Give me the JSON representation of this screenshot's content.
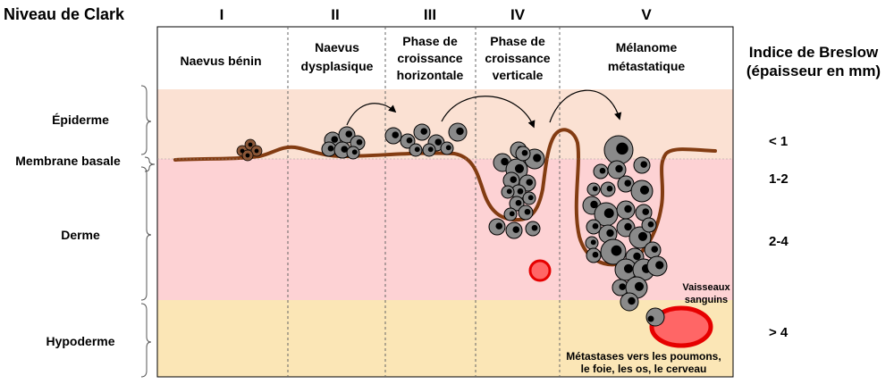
{
  "clark": {
    "title": "Niveau de Clark",
    "levels": [
      "I",
      "II",
      "III",
      "IV",
      "V"
    ]
  },
  "stages": {
    "s1": [
      "Naevus bénin"
    ],
    "s2": [
      "Naevus",
      "dysplasique"
    ],
    "s3": [
      "Phase de",
      "croissance",
      "horizontale"
    ],
    "s4": [
      "Phase de",
      "croissance",
      "verticale"
    ],
    "s5": [
      "Mélanome",
      "métastatique"
    ]
  },
  "layers": {
    "epiderme": "Épiderme",
    "membrane": "Membrane basale",
    "derme": "Derme",
    "hypoderme": "Hypoderme"
  },
  "breslow": {
    "title": [
      "Indice de Breslow",
      "(épaisseur en mm)"
    ],
    "values": [
      "< 1",
      "1-2",
      "2-4",
      "> 4"
    ]
  },
  "vessels": [
    "Vaisseaux",
    "sanguins"
  ],
  "metastases": [
    "Métastases vers les poumons,",
    "le foie, les os, le cerveau"
  ],
  "colors": {
    "epidermis": "#fbe1d3",
    "dermis": "#fdd2d4",
    "hypodermis": "#fbe6b6",
    "membrane": "#833c12",
    "cell_fill": "#8a8a8a",
    "nucleus": "#000000",
    "benign_cell": "#8a5637",
    "vessel_red": "#e60000",
    "vessel_fill": "#ff6666"
  }
}
